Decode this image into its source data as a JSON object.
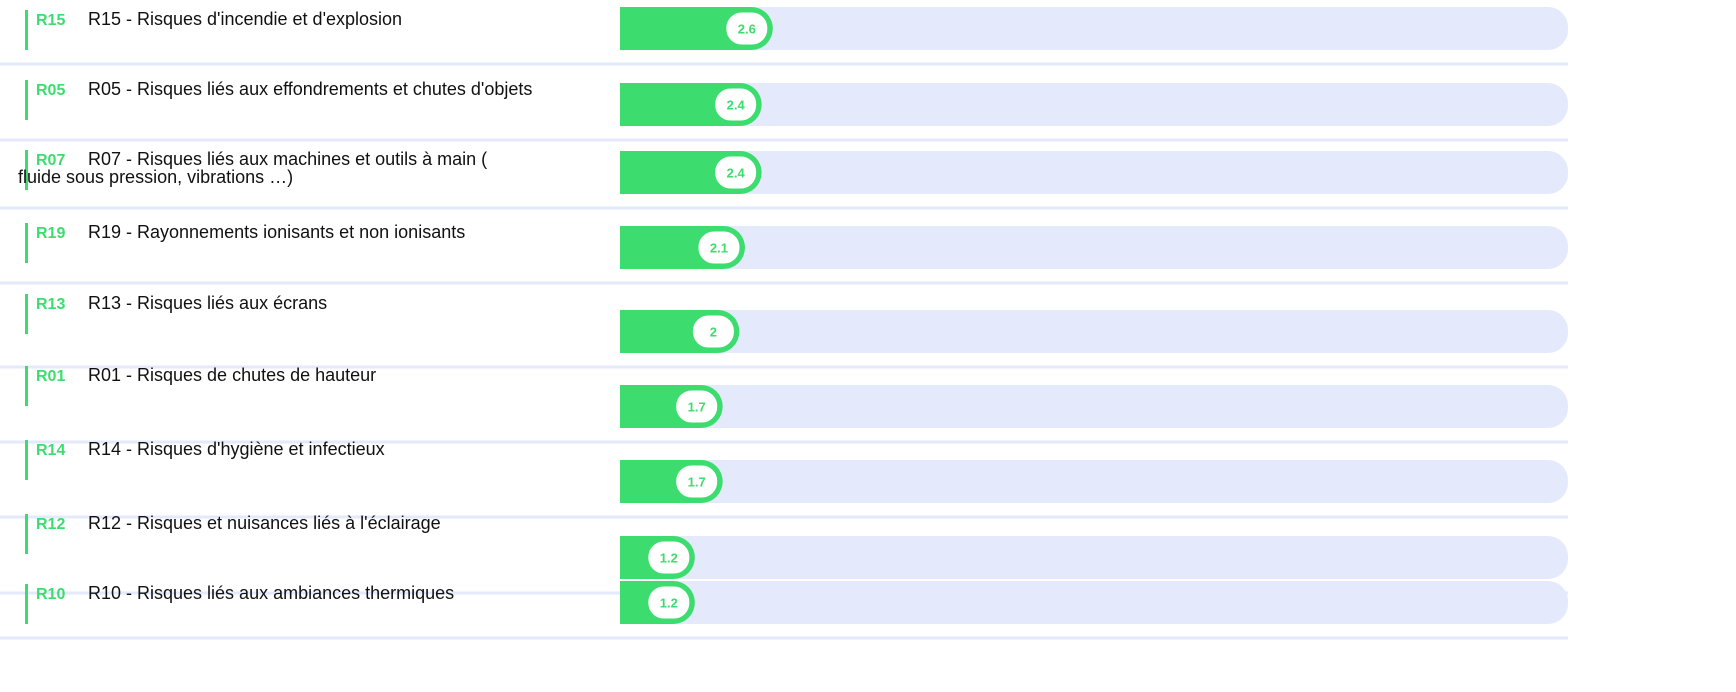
{
  "chart_data": {
    "type": "bar",
    "color": "#3ddc6e",
    "track_color": "#e4eafb",
    "categories": [
      "R15",
      "R05",
      "R07",
      "R19",
      "R13",
      "R01",
      "R14",
      "R12",
      "R10"
    ],
    "labels": [
      "R15 - Risques d'incendie et d'explosion",
      "R05 - Risques liés aux effondrements et chutes d'objets",
      "R07 - Risques liés aux machines et outils à main ( fluide sous pression, vibrations …)",
      "R19 - Rayonnements ionisants et non ionisants",
      "R13 - Risques liés aux écrans",
      "R01 - Risques de chutes de hauteur",
      "R14 - Risques d'hygiène et infectieux",
      "R12 - Risques et nuisances liés à l'éclairage",
      "R10 - Risques liés aux ambiances thermiques"
    ],
    "values": [
      2.6,
      2.4,
      2.4,
      2.1,
      2,
      1.7,
      1.7,
      1.2,
      1.2
    ]
  }
}
